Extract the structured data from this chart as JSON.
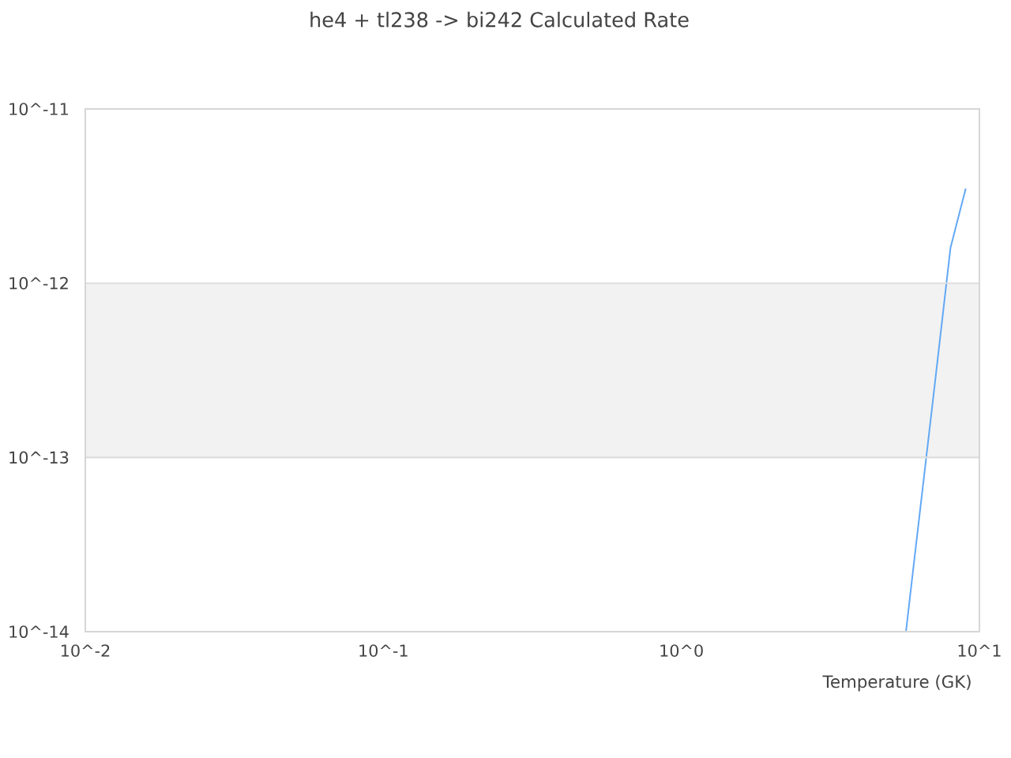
{
  "chart_data": {
    "type": "line",
    "title": "he4 + tl238 -> bi242 Calculated Rate",
    "xlabel": "Temperature (GK)",
    "x": [
      5.67,
      6,
      7,
      8,
      9
    ],
    "series": [
      {
        "color": "#62a8f5",
        "values": [
          1e-14,
          2.3e-14,
          2.2e-13,
          1.6e-12,
          3.5e-12
        ]
      }
    ],
    "log": "xy",
    "xlim": [
      0.01,
      10
    ],
    "ylim": [
      1e-14,
      1e-11
    ],
    "xticks": [
      {
        "value": 0.01,
        "label": "10^-2"
      },
      {
        "value": 0.1,
        "label": "10^-1"
      },
      {
        "value": 1,
        "label": "10^0"
      },
      {
        "value": 10,
        "label": "10^1"
      }
    ],
    "yticks": [
      {
        "value": 1e-14,
        "label": "10^-14"
      },
      {
        "value": 1e-13,
        "label": "10^-13"
      },
      {
        "value": 1e-12,
        "label": "10^-12"
      },
      {
        "value": 1e-11,
        "label": "10^-11"
      }
    ],
    "grid": "y",
    "bands": [
      {
        "axis": "y",
        "from": 1e-13,
        "to": 1e-12,
        "color": "#f2f2f2"
      }
    ],
    "marker": "none",
    "line_style": "solid"
  }
}
